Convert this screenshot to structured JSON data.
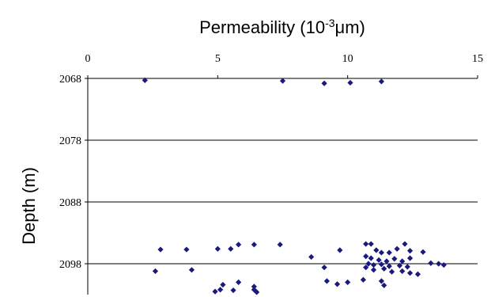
{
  "chart_data": {
    "type": "scatter",
    "title_main": "Permeability (10",
    "title_sup": "-3",
    "title_unit": "μm)",
    "ylabel": "Depth (m)",
    "x_axis": {
      "position": "top",
      "range": [
        0,
        15
      ],
      "ticks": [
        0,
        5,
        10,
        15
      ],
      "tick_labels": [
        "0",
        "5",
        "10",
        "15"
      ]
    },
    "y_axis": {
      "inverted": true,
      "range": [
        2068,
        2103
      ],
      "ticks": [
        2068,
        2078,
        2088,
        2098
      ],
      "tick_labels": [
        "2068",
        "2078",
        "2088",
        "2098"
      ]
    },
    "grid": {
      "horizontal": true,
      "vertical": false
    },
    "marker": {
      "shape": "diamond",
      "color": "#1a1a7e"
    },
    "series": [
      {
        "points": [
          [
            2.2,
            2068.3
          ],
          [
            7.5,
            2068.4
          ],
          [
            9.1,
            2068.8
          ],
          [
            10.1,
            2068.7
          ],
          [
            11.3,
            2068.5
          ],
          [
            2.8,
            2095.7
          ],
          [
            3.8,
            2095.7
          ],
          [
            5.0,
            2095.6
          ],
          [
            5.5,
            2095.6
          ],
          [
            5.8,
            2094.9
          ],
          [
            6.4,
            2094.9
          ],
          [
            7.4,
            2094.9
          ],
          [
            8.6,
            2096.9
          ],
          [
            9.7,
            2095.8
          ],
          [
            10.7,
            2094.8
          ],
          [
            10.9,
            2094.8
          ],
          [
            11.1,
            2095.8
          ],
          [
            11.3,
            2096.2
          ],
          [
            11.6,
            2096.2
          ],
          [
            11.9,
            2095.6
          ],
          [
            12.2,
            2094.8
          ],
          [
            12.4,
            2095.9
          ],
          [
            12.9,
            2096.1
          ],
          [
            10.7,
            2096.8
          ],
          [
            10.9,
            2097.1
          ],
          [
            11.2,
            2097.4
          ],
          [
            11.5,
            2097.6
          ],
          [
            11.8,
            2097.2
          ],
          [
            12.1,
            2097.6
          ],
          [
            12.4,
            2097.1
          ],
          [
            10.8,
            2098.0
          ],
          [
            11.0,
            2098.2
          ],
          [
            11.3,
            2098.1
          ],
          [
            11.6,
            2098.4
          ],
          [
            12.0,
            2098.3
          ],
          [
            12.3,
            2098.5
          ],
          [
            13.2,
            2097.9
          ],
          [
            13.5,
            2098.0
          ],
          [
            13.7,
            2098.2
          ],
          [
            2.6,
            2099.2
          ],
          [
            4.0,
            2099.0
          ],
          [
            9.1,
            2098.6
          ],
          [
            10.7,
            2098.6
          ],
          [
            11.0,
            2099.0
          ],
          [
            11.4,
            2098.8
          ],
          [
            11.7,
            2099.3
          ],
          [
            12.1,
            2099.2
          ],
          [
            12.4,
            2099.5
          ],
          [
            12.7,
            2099.7
          ],
          [
            5.2,
            2101.4
          ],
          [
            5.8,
            2101.0
          ],
          [
            6.4,
            2101.7
          ],
          [
            9.2,
            2100.8
          ],
          [
            9.6,
            2101.3
          ],
          [
            10.0,
            2101.0
          ],
          [
            10.6,
            2100.6
          ],
          [
            11.3,
            2100.8
          ],
          [
            11.4,
            2101.5
          ],
          [
            4.9,
            2102.5
          ],
          [
            5.1,
            2102.2
          ],
          [
            5.6,
            2102.3
          ],
          [
            6.4,
            2102.2
          ],
          [
            6.5,
            2102.6
          ]
        ]
      }
    ]
  }
}
